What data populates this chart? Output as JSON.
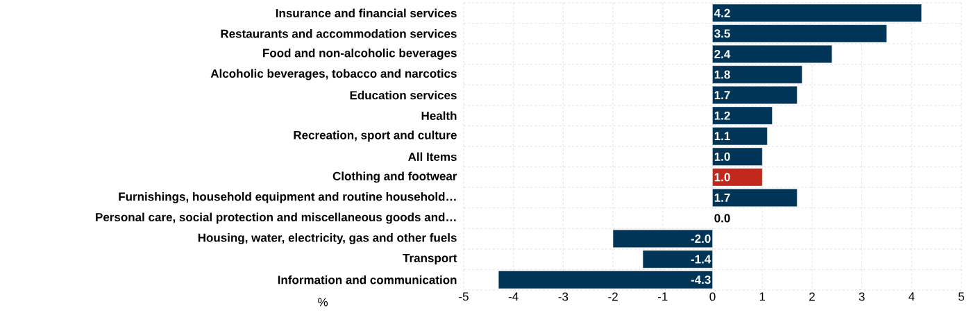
{
  "chart_data": {
    "type": "bar",
    "orientation": "horizontal",
    "xlabel": "%",
    "categories": [
      "Insurance and financial services",
      "Restaurants and accommodation services",
      "Food and non-alcoholic beverages",
      "Alcoholic beverages, tobacco and narcotics",
      "Education services",
      "Health",
      "Recreation, sport and culture",
      "All Items",
      "Clothing and footwear",
      "Furnishings, household equipment and routine household…",
      "Personal care, social protection and miscellaneous goods and…",
      "Housing, water, electricity, gas and other fuels",
      "Transport",
      "Information and communication"
    ],
    "values": [
      4.2,
      3.5,
      2.4,
      1.8,
      1.7,
      1.2,
      1.1,
      1.0,
      1.0,
      1.7,
      0.0,
      -2.0,
      -1.4,
      -4.3
    ],
    "colors": [
      "#003558",
      "#003558",
      "#003558",
      "#003558",
      "#003558",
      "#003558",
      "#003558",
      "#003558",
      "#c0281c",
      "#003558",
      "#003558",
      "#003558",
      "#003558",
      "#003558"
    ],
    "xlim": [
      -5,
      5
    ],
    "xticks": [
      -5,
      -4,
      -3,
      -2,
      -1,
      0,
      1,
      2,
      3,
      4,
      5
    ],
    "value_labels": [
      "4.2",
      "3.5",
      "2.4",
      "1.8",
      "1.7",
      "1.2",
      "1.1",
      "1.0",
      "1.0",
      "1.7",
      "0.0",
      "-2.0",
      "-1.4",
      "-4.3"
    ],
    "grid": true
  }
}
